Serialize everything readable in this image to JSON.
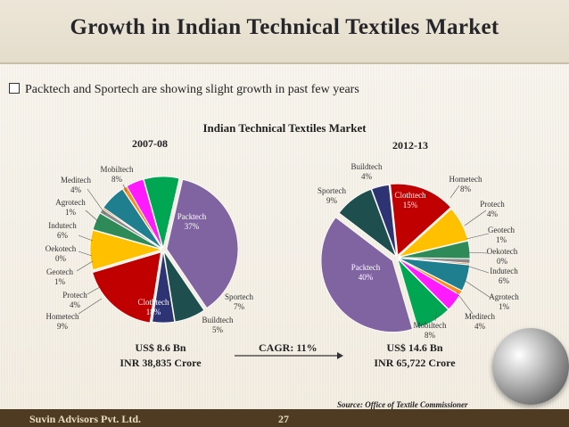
{
  "title": "Growth in Indian Technical Textiles Market",
  "bullet": "Packtech and Sportech are showing slight growth in past few years",
  "chart_heading": "Indian Technical Textiles Market",
  "chart_data": [
    {
      "type": "pie",
      "title": "2007-08",
      "slices": [
        {
          "label": "Packtech",
          "pct": "37%",
          "value": 37,
          "color": "#8064a2"
        },
        {
          "label": "Sportech",
          "pct": "7%",
          "value": 7,
          "color": "#1f4e4e"
        },
        {
          "label": "Buildtech",
          "pct": "5%",
          "value": 5,
          "color": "#2e3473"
        },
        {
          "label": "Clothtech",
          "pct": "18%",
          "value": 18,
          "color": "#c00000"
        },
        {
          "label": "Hometech",
          "pct": "9%",
          "value": 9,
          "color": "#ffc000"
        },
        {
          "label": "Protech",
          "pct": "4%",
          "value": 4,
          "color": "#2e8b57"
        },
        {
          "label": "Geotech",
          "pct": "1%",
          "value": 1,
          "color": "#8a8a8a"
        },
        {
          "label": "Oekotech",
          "pct": "0%",
          "value": 0.3,
          "color": "#e36c09"
        },
        {
          "label": "Indutech",
          "pct": "6%",
          "value": 6,
          "color": "#1f7f8f"
        },
        {
          "label": "Agrotech",
          "pct": "1%",
          "value": 1,
          "color": "#ff8c1a"
        },
        {
          "label": "Meditech",
          "pct": "4%",
          "value": 4,
          "color": "#ff1aff"
        },
        {
          "label": "Mobiltech",
          "pct": "8%",
          "value": 8,
          "color": "#00a651"
        }
      ]
    },
    {
      "type": "pie",
      "title": "2012-13",
      "slices": [
        {
          "label": "Clothtech",
          "pct": "15%",
          "value": 15,
          "color": "#c00000"
        },
        {
          "label": "Hometech",
          "pct": "8%",
          "value": 8,
          "color": "#ffc000"
        },
        {
          "label": "Protech",
          "pct": "4%",
          "value": 4,
          "color": "#2e8b57"
        },
        {
          "label": "Geotech",
          "pct": "1%",
          "value": 1,
          "color": "#8a8a8a"
        },
        {
          "label": "Oekotech",
          "pct": "0%",
          "value": 0.3,
          "color": "#e36c09"
        },
        {
          "label": "Indutech",
          "pct": "6%",
          "value": 6,
          "color": "#1f7f8f"
        },
        {
          "label": "Agrotech",
          "pct": "1%",
          "value": 1,
          "color": "#ff8c1a"
        },
        {
          "label": "Meditech",
          "pct": "4%",
          "value": 4,
          "color": "#ff1aff"
        },
        {
          "label": "Mobiltech",
          "pct": "8%",
          "value": 8,
          "color": "#00a651"
        },
        {
          "label": "Packtech",
          "pct": "40%",
          "value": 40,
          "color": "#8064a2"
        },
        {
          "label": "Sportech",
          "pct": "9%",
          "value": 9,
          "color": "#1f4e4e"
        },
        {
          "label": "Buildtech",
          "pct": "4%",
          "value": 4,
          "color": "#2e3473"
        }
      ]
    }
  ],
  "value_2007": {
    "usd": "US$ 8.6 Bn",
    "inr": "INR 38,835 Crore"
  },
  "value_2012": {
    "usd": "US$ 14.6 Bn",
    "inr": "INR 65,722 Crore"
  },
  "cagr": "CAGR: 11%",
  "source": "Source: Office of Textile Commissioner",
  "footer": {
    "company": "Suvin Advisors Pvt. Ltd.",
    "page": "27"
  }
}
